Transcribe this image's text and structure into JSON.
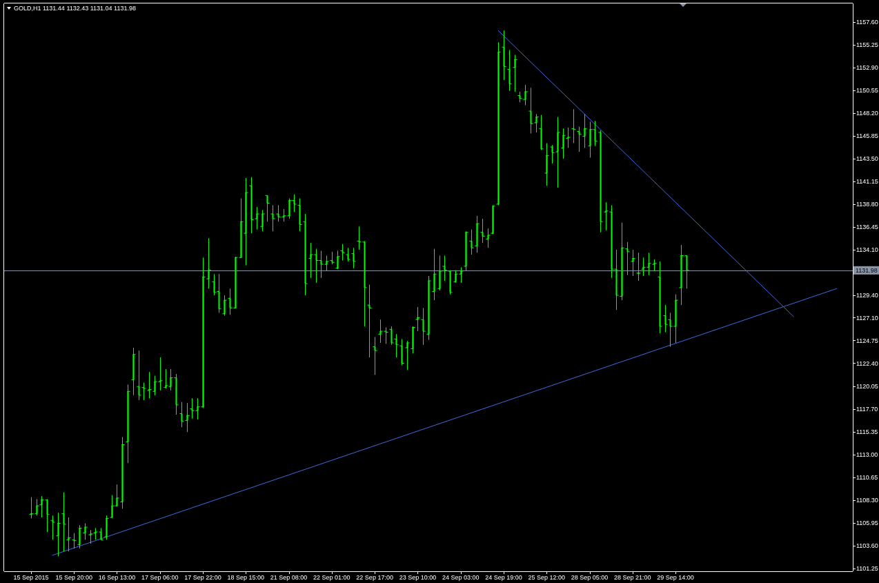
{
  "chart_data": {
    "type": "candlestick",
    "title": "GOLD,H1 1131.44 1132.43 1131.04 1131.98",
    "categories": [
      "15 Sep 2015",
      null,
      null,
      null,
      null,
      null,
      null,
      null,
      "15 Sep 20:00",
      null,
      null,
      null,
      null,
      null,
      null,
      null,
      "16 Sep 13:00",
      null,
      null,
      null,
      null,
      null,
      null,
      null,
      "17 Sep 06:00",
      null,
      null,
      null,
      null,
      null,
      null,
      null,
      "17 Sep 22:00",
      null,
      null,
      null,
      null,
      null,
      null,
      null,
      "18 Sep 15:00",
      null,
      null,
      null,
      null,
      null,
      null,
      null,
      "21 Sep 08:00",
      null,
      null,
      null,
      null,
      null,
      null,
      null,
      "22 Sep 01:00",
      null,
      null,
      null,
      null,
      null,
      null,
      null,
      "22 Sep 17:00",
      null,
      null,
      null,
      null,
      null,
      null,
      null,
      "23 Sep 10:00",
      null,
      null,
      null,
      null,
      null,
      null,
      null,
      "24 Sep 03:00",
      null,
      null,
      null,
      null,
      null,
      null,
      null,
      "24 Sep 19:00",
      null,
      null,
      null,
      null,
      null,
      null,
      null,
      "25 Sep 12:00",
      null,
      null,
      null,
      null,
      null,
      null,
      null,
      "28 Sep 05:00",
      null,
      null,
      null,
      null,
      null,
      null,
      null,
      "28 Sep 21:00",
      null,
      null,
      null,
      null,
      null,
      null,
      null,
      "29 Sep 14:00",
      null,
      null,
      null,
      null,
      null,
      null,
      null,
      null,
      null,
      null,
      null,
      null,
      null,
      null,
      null,
      null,
      null,
      null,
      null,
      null,
      null,
      null,
      null,
      null,
      null,
      null,
      null,
      null,
      null,
      null,
      null,
      null
    ],
    "ylim": [
      1100.95,
      1159.5
    ],
    "yticks": [
      {
        "value": 1101.25,
        "label": "1101.25"
      },
      {
        "value": 1103.6,
        "label": "1103.60"
      },
      {
        "value": 1105.95,
        "label": "1105.95"
      },
      {
        "value": 1108.3,
        "label": "1108.30"
      },
      {
        "value": 1110.65,
        "label": "1110.65"
      },
      {
        "value": 1113,
        "label": "1113.00"
      },
      {
        "value": 1115.35,
        "label": "1115.35"
      },
      {
        "value": 1117.7,
        "label": "1117.70"
      },
      {
        "value": 1120.05,
        "label": "1120.05"
      },
      {
        "value": 1122.4,
        "label": "1122.40"
      },
      {
        "value": 1124.75,
        "label": "1124.75"
      },
      {
        "value": 1127.1,
        "label": "1127.10"
      },
      {
        "value": 1129.4,
        "label": "1129.40"
      },
      {
        "value": 1134.1,
        "label": "1134.10"
      },
      {
        "value": 1136.45,
        "label": "1136.45"
      },
      {
        "value": 1138.8,
        "label": "1138.80"
      },
      {
        "value": 1141.15,
        "label": "1141.15"
      },
      {
        "value": 1143.5,
        "label": "1143.50"
      },
      {
        "value": 1145.85,
        "label": "1145.85"
      },
      {
        "value": 1148.2,
        "label": "1148.20"
      },
      {
        "value": 1150.55,
        "label": "1150.55"
      },
      {
        "value": 1152.9,
        "label": "1152.90"
      },
      {
        "value": 1155.25,
        "label": "1155.25"
      },
      {
        "value": 1157.6,
        "label": "1157.60"
      }
    ],
    "ref_lines": [
      {
        "axis": "y",
        "value": 1131.98,
        "label": "1131.98",
        "color": "#8a96a8"
      }
    ],
    "series": [
      {
        "type": "line",
        "color": "#4169e1",
        "values": [
          null,
          null,
          null,
          null,
          1102.6,
          null,
          null,
          null,
          null,
          null,
          null,
          null,
          null,
          null,
          null,
          null,
          null,
          null,
          null,
          null,
          null,
          null,
          null,
          null,
          null,
          null,
          null,
          null,
          null,
          null,
          null,
          null,
          null,
          null,
          null,
          null,
          null,
          null,
          null,
          null,
          null,
          null,
          null,
          null,
          null,
          null,
          null,
          null,
          null,
          null,
          null,
          null,
          null,
          null,
          null,
          null,
          null,
          null,
          null,
          null,
          null,
          null,
          null,
          null,
          null,
          null,
          null,
          null,
          null,
          null,
          null,
          null,
          null,
          null,
          null,
          null,
          null,
          null,
          null,
          null,
          null,
          null,
          null,
          null,
          null,
          null,
          null,
          null,
          null,
          null,
          null,
          null,
          null,
          null,
          null,
          null,
          null,
          null,
          null,
          null,
          null,
          null,
          null,
          null,
          null,
          null,
          null,
          null,
          null,
          null,
          null,
          null,
          null,
          null,
          null,
          null,
          null,
          null,
          null,
          null,
          null,
          null,
          null,
          null,
          null,
          null,
          null,
          null,
          null,
          null,
          null,
          null,
          null,
          null,
          null,
          null,
          null,
          null,
          null,
          null,
          null,
          null,
          null,
          null,
          null,
          null,
          null,
          null,
          null,
          null,
          1130.1,
          null,
          null
        ]
      },
      {
        "type": "line",
        "color": "#4169e1",
        "values": [
          null,
          null,
          null,
          null,
          null,
          null,
          null,
          null,
          null,
          null,
          null,
          null,
          null,
          null,
          null,
          null,
          null,
          null,
          null,
          null,
          null,
          null,
          null,
          null,
          null,
          null,
          null,
          null,
          null,
          null,
          null,
          null,
          null,
          null,
          null,
          null,
          null,
          null,
          null,
          null,
          null,
          null,
          null,
          null,
          null,
          null,
          null,
          null,
          null,
          null,
          null,
          null,
          null,
          null,
          null,
          null,
          null,
          null,
          null,
          null,
          null,
          null,
          null,
          null,
          null,
          null,
          null,
          null,
          null,
          null,
          null,
          null,
          null,
          null,
          null,
          null,
          null,
          null,
          null,
          null,
          null,
          null,
          null,
          null,
          null,
          null,
          null,
          1156.7,
          null,
          null,
          null,
          null,
          null,
          null,
          null,
          null,
          null,
          null,
          null,
          null,
          null,
          null,
          null,
          null,
          null,
          null,
          null,
          null,
          null,
          null,
          null,
          null,
          null,
          null,
          null,
          null,
          null,
          null,
          null,
          null,
          null,
          null,
          null,
          null,
          null,
          null,
          null,
          null,
          null,
          null,
          null,
          null,
          null,
          null,
          null,
          null,
          null,
          null,
          null,
          null,
          null,
          null,
          1127.2,
          null,
          null,
          null,
          null,
          null,
          null,
          null,
          null,
          null,
          null
        ]
      },
      {
        "color": "#00ff00",
        "ohlc": [
          [
            1106.8,
            1108.6,
            1106.4,
            1106.9
          ],
          [
            1106.9,
            1108.4,
            1106.7,
            1107.7
          ],
          [
            1107.8,
            1108.7,
            1106.5,
            1108.3
          ],
          [
            1108.3,
            1108.4,
            1105.0,
            1106.8
          ],
          [
            1106.2,
            1106.7,
            1104.2,
            1106.0
          ],
          [
            1104.6,
            1107.0,
            1102.5,
            1105.9
          ],
          [
            1106.9,
            1109.1,
            1103.0,
            1105.8
          ],
          [
            1104.2,
            1106.5,
            1103.0,
            1104.4
          ],
          [
            1104.2,
            1104.9,
            1103.3,
            1104.1
          ],
          [
            1103.7,
            1105.7,
            1103.3,
            1105.4
          ],
          [
            1104.9,
            1105.9,
            1104.2,
            1105.5
          ],
          [
            1104.7,
            1105.2,
            1103.8,
            1104.8
          ],
          [
            1104.9,
            1105.4,
            1104.2,
            1105.0
          ],
          [
            1105.0,
            1105.4,
            1104.2,
            1104.2
          ],
          [
            1104.5,
            1106.7,
            1104.2,
            1106.4
          ],
          [
            1106.5,
            1108.8,
            1106.5,
            1107.7
          ],
          [
            1107.7,
            1109.9,
            1107.6,
            1108.5
          ],
          [
            1108.1,
            1114.8,
            1107.4,
            1114.0
          ],
          [
            1114.3,
            1120.2,
            1112.1,
            1119.5
          ],
          [
            1120.7,
            1124.0,
            1119.1,
            1123.3
          ],
          [
            1120.0,
            1123.7,
            1118.6,
            1119.1
          ],
          [
            1119.9,
            1120.4,
            1118.6,
            1119.8
          ],
          [
            1119.6,
            1121.5,
            1118.8,
            1119.7
          ],
          [
            1119.5,
            1121.1,
            1119.1,
            1120.5
          ],
          [
            1120.5,
            1123.0,
            1119.6,
            1120.6
          ],
          [
            1119.9,
            1121.8,
            1119.8,
            1120.1
          ],
          [
            1120.0,
            1121.8,
            1119.6,
            1120.9
          ],
          [
            1120.9,
            1121.3,
            1117.1,
            1118.1
          ],
          [
            1117.2,
            1118.4,
            1115.8,
            1116.4
          ],
          [
            1116.5,
            1118.3,
            1115.3,
            1117.0
          ],
          [
            1117.7,
            1118.8,
            1116.7,
            1117.5
          ],
          [
            1117.5,
            1118.8,
            1116.6,
            1117.9
          ],
          [
            1117.9,
            1133.3,
            1117.8,
            1131.3
          ],
          [
            1131.1,
            1135.3,
            1130.1,
            1132.0
          ],
          [
            1130.8,
            1131.6,
            1129.4,
            1129.7
          ],
          [
            1129.8,
            1131.6,
            1127.6,
            1128.0
          ],
          [
            1127.5,
            1129.4,
            1127.3,
            1128.9
          ],
          [
            1129.1,
            1130.1,
            1127.4,
            1128.1
          ],
          [
            1128.1,
            1133.4,
            1128.1,
            1133.3
          ],
          [
            1133.3,
            1139.4,
            1133.3,
            1137.0
          ],
          [
            1135.8,
            1141.5,
            1132.5,
            1140.0
          ],
          [
            1140.7,
            1141.6,
            1135.8,
            1137.2
          ],
          [
            1137.3,
            1138.5,
            1136.2,
            1137.8
          ],
          [
            1136.5,
            1138.2,
            1136.0,
            1137.8
          ],
          [
            1139.7,
            1139.7,
            1137.0,
            1138.9
          ],
          [
            1137.8,
            1138.7,
            1136.0,
            1137.3
          ],
          [
            1137.8,
            1138.7,
            1137.0,
            1137.5
          ],
          [
            1137.5,
            1138.3,
            1137.0,
            1137.6
          ],
          [
            1137.6,
            1139.4,
            1137.3,
            1139.2
          ],
          [
            1139.2,
            1139.8,
            1138.0,
            1138.8
          ],
          [
            1138.7,
            1139.4,
            1136.0,
            1136.7
          ],
          [
            1137.0,
            1137.8,
            1129.4,
            1130.6
          ],
          [
            1133.2,
            1134.8,
            1131.2,
            1133.6
          ],
          [
            1133.6,
            1134.2,
            1130.7,
            1133.0
          ],
          [
            1133.0,
            1134.0,
            1131.2,
            1132.6
          ],
          [
            1132.6,
            1133.5,
            1131.9,
            1132.9
          ],
          [
            1133.0,
            1133.9,
            1132.6,
            1132.8
          ],
          [
            1132.2,
            1134.0,
            1132.1,
            1133.4
          ],
          [
            1134.0,
            1134.7,
            1133.0,
            1133.8
          ],
          [
            1133.6,
            1134.3,
            1132.9,
            1133.1
          ],
          [
            1133.7,
            1134.3,
            1132.2,
            1132.9
          ],
          [
            1135.0,
            1136.5,
            1134.1,
            1134.9
          ],
          [
            1134.9,
            1135.0,
            1126.2,
            1130.2
          ],
          [
            1128.4,
            1130.5,
            1123.0,
            1128.1
          ],
          [
            1124.1,
            1125.1,
            1121.2,
            1123.7
          ],
          [
            1125.4,
            1126.9,
            1124.5,
            1125.7
          ],
          [
            1125.7,
            1126.1,
            1124.4,
            1125.6
          ],
          [
            1125.9,
            1126.2,
            1124.3,
            1124.5
          ],
          [
            1124.9,
            1125.4,
            1123.0,
            1124.3
          ],
          [
            1124.2,
            1124.9,
            1122.2,
            1122.4
          ],
          [
            1124.0,
            1124.7,
            1121.7,
            1124.5
          ],
          [
            1123.9,
            1126.2,
            1123.4,
            1126.1
          ],
          [
            1126.9,
            1128.2,
            1125.7,
            1127.1
          ],
          [
            1126.9,
            1128.1,
            1124.3,
            1125.7
          ],
          [
            1125.4,
            1131.4,
            1124.8,
            1130.9
          ],
          [
            1129.8,
            1134.2,
            1128.9,
            1131.6
          ],
          [
            1130.1,
            1133.5,
            1129.9,
            1131.9
          ],
          [
            1132.4,
            1133.5,
            1130.9,
            1132.0
          ],
          [
            1131.9,
            1132.0,
            1129.5,
            1129.7
          ],
          [
            1130.8,
            1132.0,
            1130.7,
            1131.6
          ],
          [
            1131.6,
            1132.3,
            1130.7,
            1131.9
          ],
          [
            1132.4,
            1136.0,
            1131.9,
            1135.9
          ],
          [
            1135.0,
            1136.2,
            1133.6,
            1134.3
          ],
          [
            1134.5,
            1137.6,
            1133.8,
            1136.8
          ],
          [
            1135.9,
            1137.3,
            1134.8,
            1135.5
          ],
          [
            1135.2,
            1136.3,
            1134.3,
            1135.6
          ],
          [
            1135.8,
            1138.7,
            1135.7,
            1138.6
          ],
          [
            1138.8,
            1155.5,
            1138.7,
            1154.5
          ],
          [
            1155.0,
            1156.7,
            1151.6,
            1153.0
          ],
          [
            1152.7,
            1154.7,
            1150.5,
            1151.2
          ],
          [
            1152.9,
            1154.2,
            1150.4,
            1153.7
          ],
          [
            1150.0,
            1150.4,
            1149.3,
            1149.7
          ],
          [
            1149.6,
            1151.1,
            1149.0,
            1150.4
          ],
          [
            1148.4,
            1150.8,
            1146.1,
            1147.1
          ],
          [
            1147.2,
            1148.1,
            1146.2,
            1147.8
          ],
          [
            1146.6,
            1148.0,
            1144.4,
            1144.5
          ],
          [
            1142.0,
            1145.1,
            1140.7,
            1143.8
          ],
          [
            1144.7,
            1144.9,
            1143.0,
            1144.1
          ],
          [
            1144.2,
            1147.8,
            1140.5,
            1146.2
          ],
          [
            1144.6,
            1146.6,
            1143.5,
            1145.9
          ],
          [
            1145.6,
            1146.7,
            1144.6,
            1145.7
          ],
          [
            1146.6,
            1148.6,
            1145.1,
            1146.5
          ],
          [
            1146.3,
            1146.8,
            1144.2,
            1146.0
          ],
          [
            1145.8,
            1148.1,
            1144.6,
            1146.6
          ],
          [
            1144.8,
            1147.3,
            1143.6,
            1146.5
          ],
          [
            1146.5,
            1147.4,
            1144.8,
            1145.3
          ],
          [
            1146.2,
            1146.4,
            1135.9,
            1137.0
          ],
          [
            1138.0,
            1139.0,
            1136.1,
            1138.1
          ],
          [
            1138.0,
            1138.7,
            1131.2,
            1132.1
          ],
          [
            1132.1,
            1134.1,
            1127.9,
            1129.4
          ],
          [
            1129.3,
            1136.9,
            1128.9,
            1134.3
          ],
          [
            1134.2,
            1134.9,
            1131.5,
            1133.9
          ],
          [
            1132.9,
            1134.1,
            1131.4,
            1133.2
          ],
          [
            1131.7,
            1133.8,
            1130.9,
            1131.7
          ],
          [
            1132.1,
            1133.3,
            1131.4,
            1132.3
          ],
          [
            1132.3,
            1133.8,
            1131.5,
            1132.7
          ],
          [
            1132.6,
            1133.1,
            1131.9,
            1132.7
          ],
          [
            1131.3,
            1132.9,
            1125.5,
            1126.2
          ],
          [
            1127.3,
            1128.4,
            1125.6,
            1126.4
          ],
          [
            1126.9,
            1127.6,
            1124.1,
            1126.2
          ],
          [
            1126.2,
            1129.5,
            1124.5,
            1128.9
          ],
          [
            1130.2,
            1134.6,
            1128.4,
            1133.5
          ],
          [
            1133.5,
            1133.5,
            1130.1,
            1131.98
          ],
          null,
          null,
          null,
          null,
          null,
          null,
          null,
          null,
          null,
          null,
          null,
          null,
          null,
          null,
          null,
          null,
          null,
          null,
          null,
          null,
          null,
          null,
          null,
          null,
          null,
          null,
          null,
          null,
          null,
          null
        ]
      }
    ]
  }
}
